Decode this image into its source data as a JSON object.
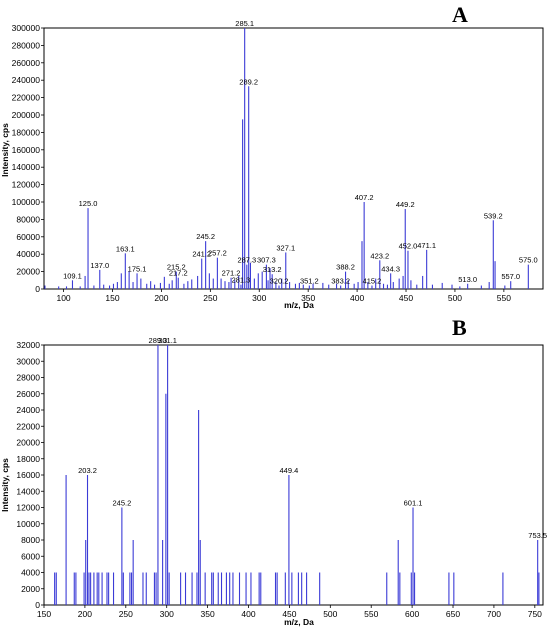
{
  "chart_data": [
    {
      "type": "bar",
      "panel_label": "A",
      "xlabel": "m/z, Da",
      "ylabel": "Intensity, cps",
      "xlim": [
        80,
        590
      ],
      "ylim": [
        0,
        300000
      ],
      "x_ticks": [
        100,
        150,
        200,
        250,
        300,
        350,
        400,
        450,
        500,
        550
      ],
      "y_ticks": [
        0,
        20000,
        40000,
        60000,
        80000,
        100000,
        120000,
        140000,
        160000,
        180000,
        200000,
        220000,
        240000,
        260000,
        280000,
        300000
      ],
      "peaks": [
        {
          "x": 81,
          "y": 4000
        },
        {
          "x": 95,
          "y": 3000
        },
        {
          "x": 103,
          "y": 3000
        },
        {
          "x": 109.1,
          "y": 10000,
          "label": "109.1"
        },
        {
          "x": 117,
          "y": 3000
        },
        {
          "x": 122,
          "y": 15000
        },
        {
          "x": 125.0,
          "y": 93000,
          "label": "125.0"
        },
        {
          "x": 131,
          "y": 4000
        },
        {
          "x": 137.0,
          "y": 22000,
          "label": "137.0"
        },
        {
          "x": 141,
          "y": 5000
        },
        {
          "x": 147,
          "y": 4000
        },
        {
          "x": 151,
          "y": 6000
        },
        {
          "x": 155,
          "y": 8000
        },
        {
          "x": 159,
          "y": 18000
        },
        {
          "x": 163.1,
          "y": 41000,
          "label": "163.1"
        },
        {
          "x": 167,
          "y": 20000
        },
        {
          "x": 171,
          "y": 8000
        },
        {
          "x": 175.1,
          "y": 18000,
          "label": "175.1"
        },
        {
          "x": 179,
          "y": 12000
        },
        {
          "x": 185,
          "y": 6000
        },
        {
          "x": 189,
          "y": 9000
        },
        {
          "x": 193,
          "y": 5000
        },
        {
          "x": 199,
          "y": 7000
        },
        {
          "x": 203,
          "y": 14000
        },
        {
          "x": 208,
          "y": 6000
        },
        {
          "x": 211,
          "y": 10000
        },
        {
          "x": 215.2,
          "y": 20000,
          "label": "215.2"
        },
        {
          "x": 217.2,
          "y": 13000,
          "label": "217.2"
        },
        {
          "x": 223,
          "y": 6000
        },
        {
          "x": 227,
          "y": 9000
        },
        {
          "x": 231,
          "y": 11000
        },
        {
          "x": 237,
          "y": 15000
        },
        {
          "x": 241.2,
          "y": 35000,
          "label": "241.2"
        },
        {
          "x": 245.2,
          "y": 55000,
          "label": "245.2"
        },
        {
          "x": 249,
          "y": 18000
        },
        {
          "x": 253,
          "y": 12000
        },
        {
          "x": 257.2,
          "y": 36000,
          "label": "257.2"
        },
        {
          "x": 261,
          "y": 12000
        },
        {
          "x": 265,
          "y": 9000
        },
        {
          "x": 269,
          "y": 8000
        },
        {
          "x": 271.2,
          "y": 13000,
          "label": "271.2"
        },
        {
          "x": 275,
          "y": 10000
        },
        {
          "x": 279,
          "y": 15000
        },
        {
          "x": 281.3,
          "y": 5000,
          "label": "281.3"
        },
        {
          "x": 283,
          "y": 195000
        },
        {
          "x": 285.1,
          "y": 300000,
          "label": "285.1"
        },
        {
          "x": 287.3,
          "y": 28000,
          "label": "287.3"
        },
        {
          "x": 289.2,
          "y": 233000,
          "label": "289.2"
        },
        {
          "x": 291,
          "y": 30000
        },
        {
          "x": 295,
          "y": 12000
        },
        {
          "x": 299,
          "y": 18000
        },
        {
          "x": 303,
          "y": 20000
        },
        {
          "x": 307.3,
          "y": 28000,
          "label": "307.3"
        },
        {
          "x": 309,
          "y": 10000
        },
        {
          "x": 311,
          "y": 24000
        },
        {
          "x": 313.2,
          "y": 17000,
          "label": "313.2"
        },
        {
          "x": 317,
          "y": 8000
        },
        {
          "x": 320.2,
          "y": 4000,
          "label": "320.2"
        },
        {
          "x": 323,
          "y": 12000
        },
        {
          "x": 327.1,
          "y": 42000,
          "label": "327.1"
        },
        {
          "x": 331,
          "y": 8000
        },
        {
          "x": 337,
          "y": 6000
        },
        {
          "x": 341,
          "y": 7000
        },
        {
          "x": 345,
          "y": 5000
        },
        {
          "x": 351.2,
          "y": 4000,
          "label": "351.2"
        },
        {
          "x": 355,
          "y": 6000
        },
        {
          "x": 365,
          "y": 7000
        },
        {
          "x": 371,
          "y": 5000
        },
        {
          "x": 379,
          "y": 6000
        },
        {
          "x": 383.2,
          "y": 4000,
          "label": "383.2"
        },
        {
          "x": 388.2,
          "y": 20000,
          "label": "388.2"
        },
        {
          "x": 391,
          "y": 10000
        },
        {
          "x": 397,
          "y": 6000
        },
        {
          "x": 401,
          "y": 8000
        },
        {
          "x": 405,
          "y": 55000
        },
        {
          "x": 407.2,
          "y": 100000,
          "label": "407.2"
        },
        {
          "x": 411,
          "y": 8000
        },
        {
          "x": 415.2,
          "y": 4000,
          "label": "415.2"
        },
        {
          "x": 419,
          "y": 12000
        },
        {
          "x": 423.2,
          "y": 33000,
          "label": "423.2"
        },
        {
          "x": 427,
          "y": 6000
        },
        {
          "x": 431,
          "y": 5000
        },
        {
          "x": 434.3,
          "y": 18000,
          "label": "434.3"
        },
        {
          "x": 437,
          "y": 8000
        },
        {
          "x": 443,
          "y": 12000
        },
        {
          "x": 447,
          "y": 15000
        },
        {
          "x": 449.2,
          "y": 92000,
          "label": "449.2"
        },
        {
          "x": 452.0,
          "y": 44000,
          "label": "452.0"
        },
        {
          "x": 455,
          "y": 10000
        },
        {
          "x": 461,
          "y": 5000
        },
        {
          "x": 467,
          "y": 15000
        },
        {
          "x": 471.1,
          "y": 45000,
          "label": "471.1"
        },
        {
          "x": 477,
          "y": 5000
        },
        {
          "x": 487,
          "y": 7000
        },
        {
          "x": 497,
          "y": 5000
        },
        {
          "x": 505,
          "y": 3000
        },
        {
          "x": 513.0,
          "y": 6000,
          "label": "513.0"
        },
        {
          "x": 527,
          "y": 4000
        },
        {
          "x": 535,
          "y": 8000
        },
        {
          "x": 539.2,
          "y": 79000,
          "label": "539.2"
        },
        {
          "x": 541,
          "y": 32000
        },
        {
          "x": 551,
          "y": 4000
        },
        {
          "x": 557.0,
          "y": 9000,
          "label": "557.0"
        },
        {
          "x": 575.0,
          "y": 28000,
          "label": "575.0"
        }
      ]
    },
    {
      "type": "bar",
      "panel_label": "B",
      "xlabel": "m/z, Da",
      "ylabel": "Intensity, cps",
      "xlim": [
        150,
        760
      ],
      "ylim": [
        0,
        32000
      ],
      "x_ticks": [
        150,
        200,
        250,
        300,
        350,
        400,
        450,
        500,
        550,
        600,
        650,
        700,
        750
      ],
      "y_ticks": [
        0,
        2000,
        4000,
        6000,
        8000,
        10000,
        12000,
        14000,
        16000,
        18000,
        20000,
        22000,
        24000,
        26000,
        28000,
        30000,
        32000
      ],
      "peaks": [
        {
          "x": 163,
          "y": 4000
        },
        {
          "x": 165,
          "y": 4000
        },
        {
          "x": 177,
          "y": 16000
        },
        {
          "x": 187,
          "y": 4000
        },
        {
          "x": 189,
          "y": 4000
        },
        {
          "x": 199,
          "y": 4000
        },
        {
          "x": 201,
          "y": 8000
        },
        {
          "x": 203.2,
          "y": 16000,
          "label": "203.2"
        },
        {
          "x": 205,
          "y": 4000
        },
        {
          "x": 207,
          "y": 4000
        },
        {
          "x": 211,
          "y": 4000
        },
        {
          "x": 215,
          "y": 4000
        },
        {
          "x": 217,
          "y": 4000
        },
        {
          "x": 221,
          "y": 4000
        },
        {
          "x": 227,
          "y": 4000
        },
        {
          "x": 229,
          "y": 4000
        },
        {
          "x": 235,
          "y": 4000
        },
        {
          "x": 245.2,
          "y": 12000,
          "label": "245.2"
        },
        {
          "x": 247,
          "y": 4000
        },
        {
          "x": 255,
          "y": 4000
        },
        {
          "x": 257,
          "y": 4000
        },
        {
          "x": 259,
          "y": 8000
        },
        {
          "x": 271,
          "y": 4000
        },
        {
          "x": 275,
          "y": 4000
        },
        {
          "x": 285,
          "y": 4000
        },
        {
          "x": 287,
          "y": 4000
        },
        {
          "x": 289.3,
          "y": 32000,
          "label": "289.3"
        },
        {
          "x": 295,
          "y": 8000
        },
        {
          "x": 299,
          "y": 26000
        },
        {
          "x": 301.1,
          "y": 32000,
          "label": "301.1"
        },
        {
          "x": 303,
          "y": 4000
        },
        {
          "x": 317,
          "y": 4000
        },
        {
          "x": 323,
          "y": 4000
        },
        {
          "x": 331,
          "y": 4000
        },
        {
          "x": 337,
          "y": 4000
        },
        {
          "x": 339,
          "y": 24000
        },
        {
          "x": 341,
          "y": 8000
        },
        {
          "x": 347,
          "y": 4000
        },
        {
          "x": 355,
          "y": 4000
        },
        {
          "x": 357,
          "y": 4000
        },
        {
          "x": 363,
          "y": 4000
        },
        {
          "x": 367,
          "y": 4000
        },
        {
          "x": 373,
          "y": 4000
        },
        {
          "x": 377,
          "y": 4000
        },
        {
          "x": 381,
          "y": 4000
        },
        {
          "x": 389,
          "y": 4000
        },
        {
          "x": 397,
          "y": 4000
        },
        {
          "x": 403,
          "y": 4000
        },
        {
          "x": 413,
          "y": 4000
        },
        {
          "x": 415,
          "y": 4000
        },
        {
          "x": 433,
          "y": 4000
        },
        {
          "x": 435,
          "y": 4000
        },
        {
          "x": 445,
          "y": 4000
        },
        {
          "x": 449.4,
          "y": 16000,
          "label": "449.4"
        },
        {
          "x": 453,
          "y": 4000
        },
        {
          "x": 461,
          "y": 4000
        },
        {
          "x": 465,
          "y": 4000
        },
        {
          "x": 471,
          "y": 4000
        },
        {
          "x": 487,
          "y": 4000
        },
        {
          "x": 569,
          "y": 4000
        },
        {
          "x": 583,
          "y": 8000
        },
        {
          "x": 585,
          "y": 4000
        },
        {
          "x": 599,
          "y": 4000
        },
        {
          "x": 601.1,
          "y": 12000,
          "label": "601.1"
        },
        {
          "x": 603,
          "y": 4000
        },
        {
          "x": 645,
          "y": 4000
        },
        {
          "x": 651,
          "y": 4000
        },
        {
          "x": 711,
          "y": 4000
        },
        {
          "x": 753.5,
          "y": 8000,
          "label": "753.5"
        },
        {
          "x": 755,
          "y": 4000
        }
      ]
    }
  ]
}
